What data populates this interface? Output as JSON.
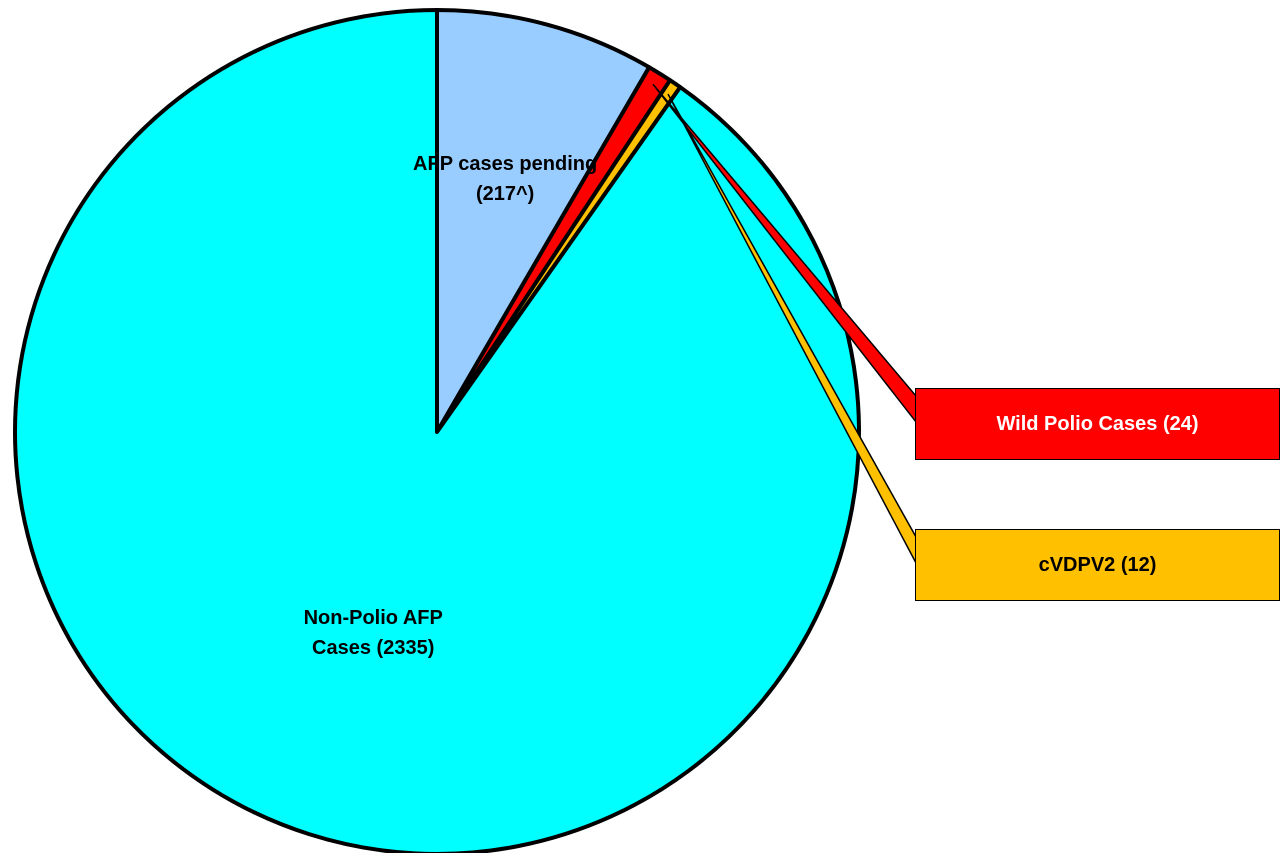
{
  "chart_data": {
    "type": "pie",
    "categories": [
      "AFP cases pending (217^)",
      "Wild Polio Cases (24)",
      "cVDPV2 (12)",
      "Non-Polio AFP Cases (2335)"
    ],
    "values": [
      217,
      24,
      12,
      2335
    ],
    "colors": [
      "#99ccff",
      "#ff0000",
      "#ffc000",
      "#00ffff"
    ]
  }
}
